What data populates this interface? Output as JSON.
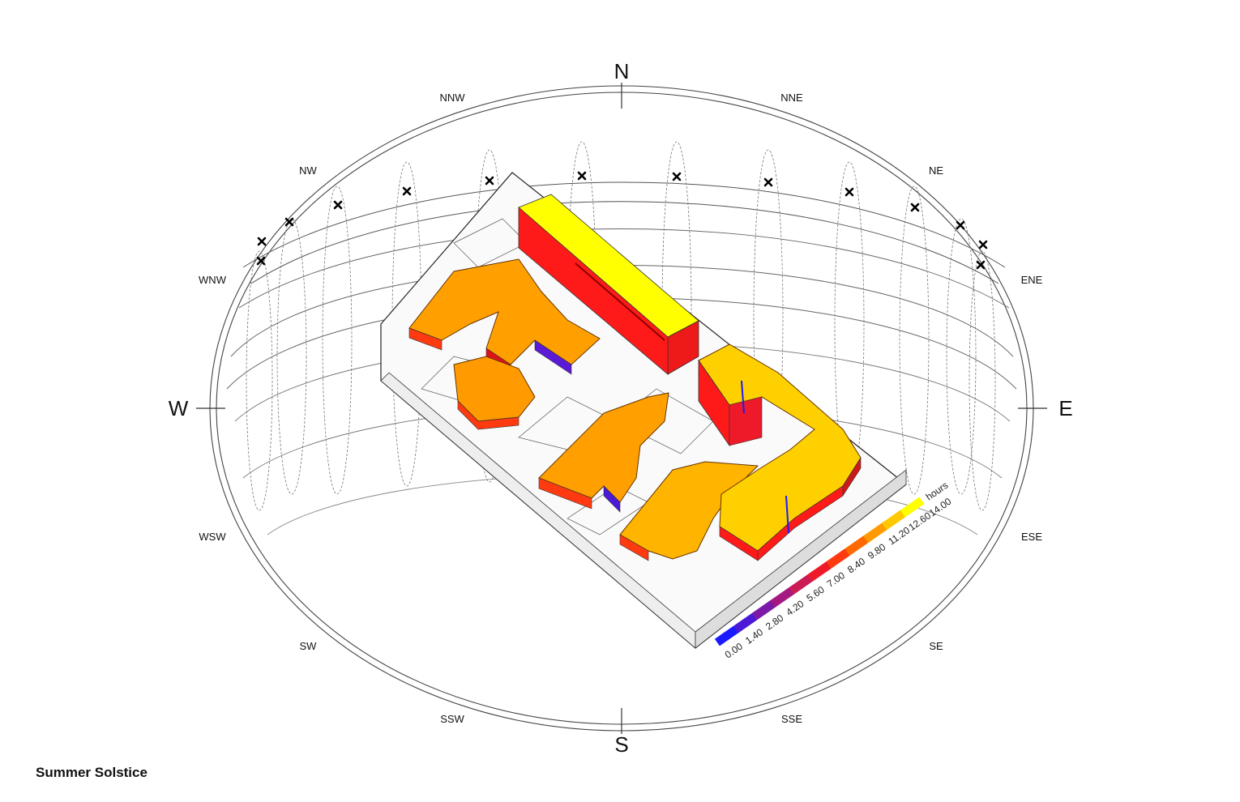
{
  "directions": {
    "N": "N",
    "S": "S",
    "E": "E",
    "W": "W",
    "NNW": "NNW",
    "NNE": "NNE",
    "NW": "NW",
    "NE": "NE",
    "WNW": "WNW",
    "ENE": "ENE",
    "WSW": "WSW",
    "ESE": "ESE",
    "SW": "SW",
    "SE": "SE",
    "SSW": "SSW",
    "SSE": "SSE"
  },
  "legend": {
    "unit": "hours",
    "values": [
      "0.00",
      "1.40",
      "2.80",
      "4.20",
      "5.60",
      "7.00",
      "8.40",
      "9.80",
      "11.20",
      "12.60",
      "14.00"
    ],
    "colors": [
      "#1a1aff",
      "#4a1ad6",
      "#7a1aa6",
      "#a51a80",
      "#cc1a55",
      "#ee1a2a",
      "#ff3a10",
      "#ff6a00",
      "#ff9a00",
      "#ffc800",
      "#ffff00"
    ]
  },
  "sun_markers": 15,
  "caption": "Summer Solstice"
}
